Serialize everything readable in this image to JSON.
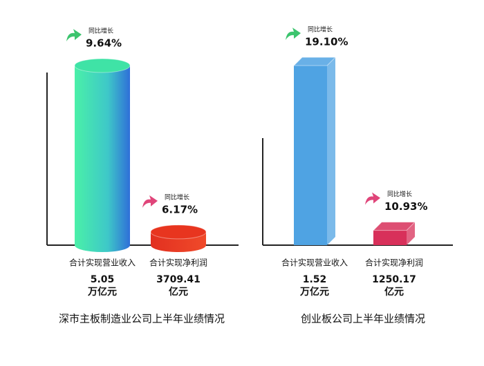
{
  "chart_data": [
    {
      "type": "bar",
      "style": "cylinder",
      "title": "深市主板制造业公司上半年业绩情况",
      "categories": [
        "合计实现营业收入",
        "合计实现净利润"
      ],
      "values": [
        50500,
        3709.41
      ],
      "value_labels": [
        [
          "5.05",
          "万亿元"
        ],
        [
          "3709.41",
          "亿元"
        ]
      ],
      "growth_caption": "同比增长",
      "growth": [
        9.64,
        6.17
      ],
      "growth_labels": [
        "9.64%",
        "6.17%"
      ],
      "colors": [
        "#3fe3a6",
        "#e8351f"
      ],
      "arrow_colors": [
        "#3cc46e",
        "#e0457a"
      ],
      "ylim": [
        0,
        50500
      ]
    },
    {
      "type": "bar",
      "style": "box",
      "title": "创业板公司上半年业绩情况",
      "categories": [
        "合计实现营业收入",
        "合计实现净利润"
      ],
      "values": [
        15200,
        1250.17
      ],
      "value_labels": [
        [
          "1.52",
          "万亿元"
        ],
        [
          "1250.17",
          "亿元"
        ]
      ],
      "growth_caption": "同比增长",
      "growth": [
        19.1,
        10.93
      ],
      "growth_labels": [
        "19.10%",
        "10.93%"
      ],
      "colors": [
        "#4fa3e3",
        "#d8305a"
      ],
      "arrow_colors": [
        "#3cc46e",
        "#e0457a"
      ],
      "ylim": [
        0,
        15200
      ]
    }
  ]
}
